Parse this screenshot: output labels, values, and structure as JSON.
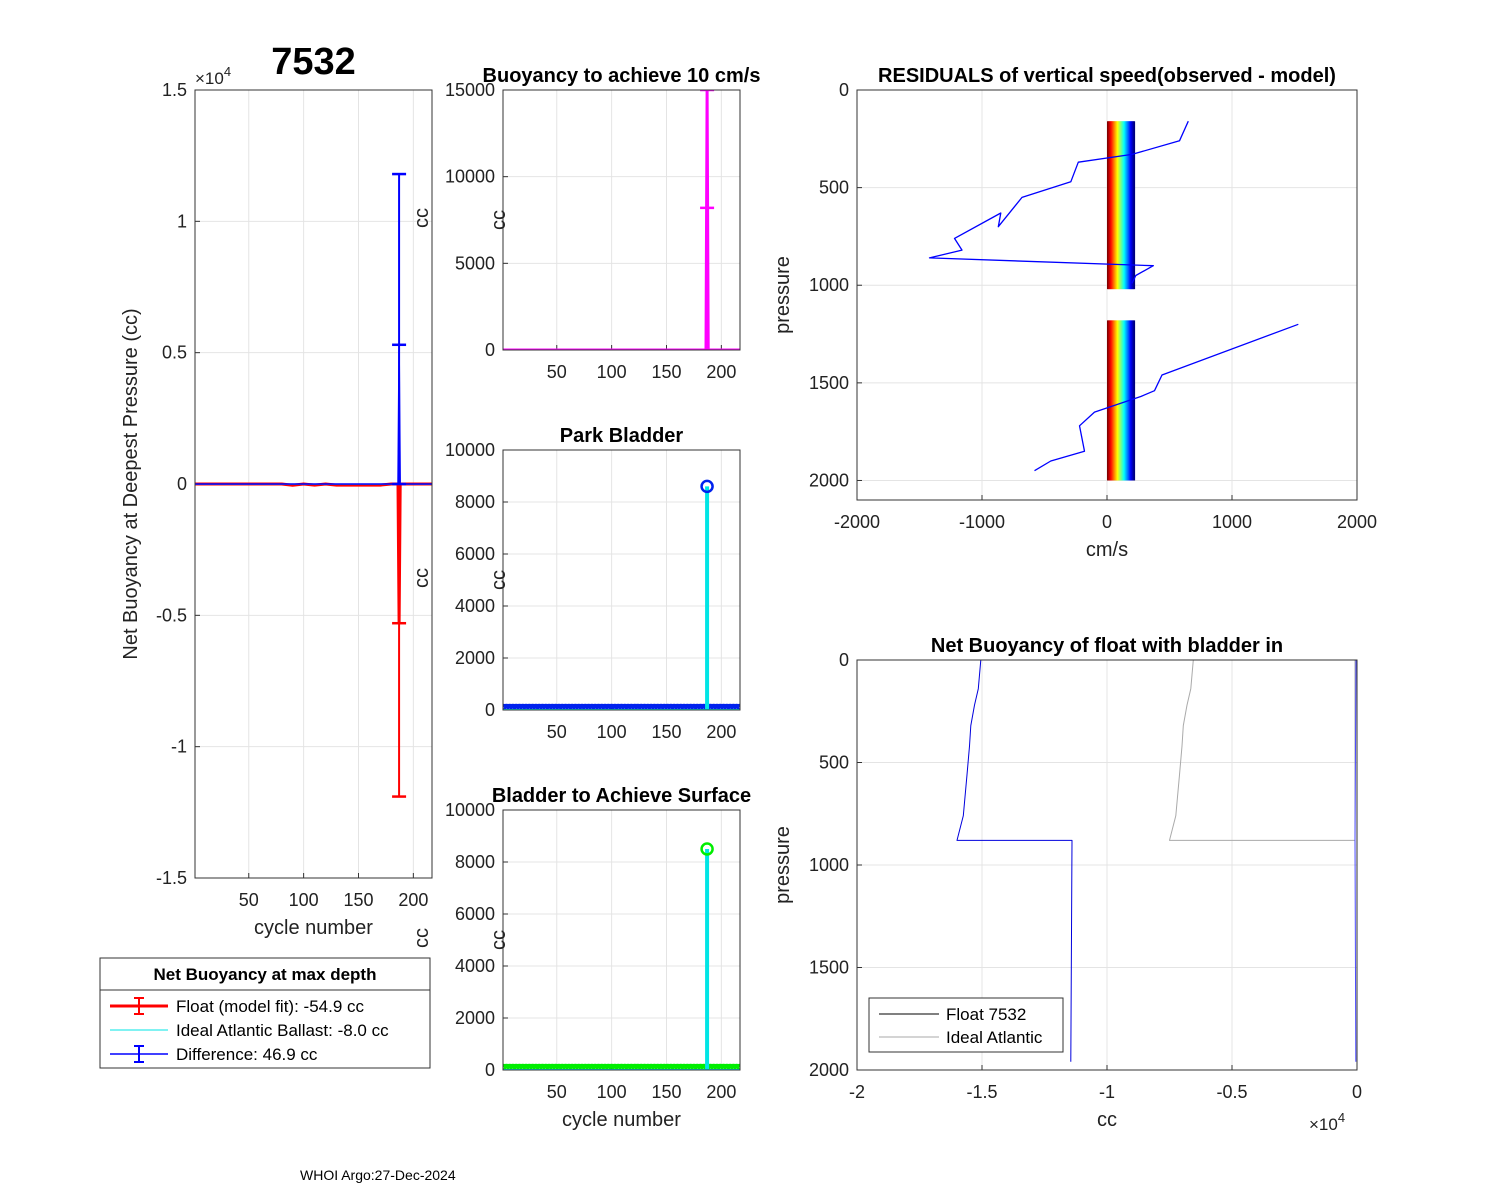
{
  "figure": {
    "float_id": "7532",
    "footer": "WHOI Argo:27-Dec-2024"
  },
  "chart_data": [
    {
      "id": "net_buoyancy",
      "type": "line",
      "title": "7532",
      "xlabel": "cycle number",
      "ylabel": "Net Buoyancy at Deepest Pressure (cc)",
      "xlim": [
        1,
        217
      ],
      "ylim": [
        -15000,
        15000
      ],
      "x_ticks": [
        50,
        100,
        150,
        200
      ],
      "x_tick_labels": [
        "50",
        "100",
        "150",
        "200"
      ],
      "y_ticks": [
        -15000,
        -10000,
        -5000,
        0,
        5000,
        10000,
        15000
      ],
      "y_tick_labels": [
        "-1.5",
        "-1",
        "-0.5",
        "0",
        "0.5",
        "1",
        "1.5"
      ],
      "y_exponent": "×10",
      "y_exponent_power": "4",
      "grid": true,
      "series": [
        {
          "name": "Float (model fit)",
          "color": "#ff0000",
          "linewidth": 3,
          "points": [
            [
              1,
              0
            ],
            [
              80,
              0
            ],
            [
              90,
              -50
            ],
            [
              100,
              0
            ],
            [
              110,
              -40
            ],
            [
              120,
              0
            ],
            [
              130,
              -40
            ],
            [
              170,
              -40
            ],
            [
              180,
              0
            ],
            [
              186,
              0
            ],
            [
              187,
              -5300
            ],
            [
              188,
              0
            ],
            [
              217,
              0
            ]
          ]
        },
        {
          "name": "Ideal Atlantic Ballast",
          "color": "#00e5e5",
          "linewidth": 1,
          "points": [
            [
              1,
              -8
            ],
            [
              217,
              -8
            ]
          ]
        },
        {
          "name": "Difference",
          "color": "#0000ff",
          "linewidth": 1.5,
          "points": [
            [
              1,
              0
            ],
            [
              186,
              0
            ],
            [
              187,
              5300
            ],
            [
              188,
              0
            ],
            [
              217,
              0
            ]
          ]
        }
      ],
      "errorbars": [
        {
          "series": "Float (model fit)",
          "x": 187,
          "y": -5300,
          "low": -11900,
          "high": 0,
          "color": "#ff0000"
        },
        {
          "series": "Difference",
          "x": 187,
          "y": 5300,
          "low": 0,
          "high": 11800,
          "color": "#0000ff"
        }
      ],
      "legend": {
        "title": "Net Buoyancy at max depth",
        "location": "below-axes",
        "entries": [
          "Float (model fit): -54.9 cc",
          "Ideal Atlantic Ballast:  -8.0 cc",
          "Difference:  46.9 cc"
        ]
      }
    },
    {
      "id": "buoyancy_10cms",
      "type": "line",
      "title": "Buoyancy to achieve 10 cm/s",
      "xlabel": "",
      "ylabel": "cc",
      "xlim": [
        1,
        217
      ],
      "ylim": [
        0,
        15000
      ],
      "x_ticks": [
        50,
        100,
        150,
        200
      ],
      "x_tick_labels": [
        "50",
        "100",
        "150",
        "200"
      ],
      "y_ticks": [
        0,
        5000,
        10000,
        15000
      ],
      "y_tick_labels": [
        "0",
        "5000",
        "10000",
        "15000"
      ],
      "grid": true,
      "series": [
        {
          "name": "buoyancy",
          "color": "#ff00ff",
          "linewidth": 3,
          "points": [
            [
              1,
              0
            ],
            [
              186,
              0
            ],
            [
              187,
              15000
            ],
            [
              188,
              0
            ],
            [
              217,
              0
            ]
          ]
        }
      ],
      "errorbars": [
        {
          "series": "buoyancy",
          "x": 187,
          "y": 8200,
          "low": 0,
          "high": 15000,
          "color": "#ff00ff"
        }
      ]
    },
    {
      "id": "park_bladder",
      "type": "scatter",
      "title": "Park Bladder",
      "xlabel": "",
      "ylabel": "cc",
      "xlim": [
        1,
        217
      ],
      "ylim": [
        0,
        10000
      ],
      "x_ticks": [
        50,
        100,
        150,
        200
      ],
      "x_tick_labels": [
        "50",
        "100",
        "150",
        "200"
      ],
      "y_ticks": [
        0,
        2000,
        4000,
        6000,
        8000,
        10000
      ],
      "y_tick_labels": [
        "0",
        "2000",
        "4000",
        "6000",
        "8000",
        "10000"
      ],
      "grid": true,
      "series": [
        {
          "name": "park bladder",
          "color": "#0022ee",
          "marker_color": "#0022ee",
          "baseline": 0,
          "x_range": [
            1,
            217
          ],
          "spike": {
            "x": 187,
            "y": 8600,
            "color": "#00e5e5"
          }
        }
      ]
    },
    {
      "id": "bladder_surface",
      "type": "scatter",
      "title": "Bladder to Achieve Surface",
      "xlabel": "cycle number",
      "ylabel": "cc",
      "xlim": [
        1,
        217
      ],
      "ylim": [
        0,
        10000
      ],
      "x_ticks": [
        50,
        100,
        150,
        200
      ],
      "x_tick_labels": [
        "50",
        "100",
        "150",
        "200"
      ],
      "y_ticks": [
        0,
        2000,
        4000,
        6000,
        8000,
        10000
      ],
      "y_tick_labels": [
        "0",
        "2000",
        "4000",
        "6000",
        "8000",
        "10000"
      ],
      "grid": true,
      "series": [
        {
          "name": "surface bladder",
          "color": "#00ee00",
          "marker_color": "#00ee00",
          "baseline": 0,
          "x_range": [
            1,
            217
          ],
          "spike": {
            "x": 187,
            "y": 8500,
            "color": "#00e5e5"
          }
        }
      ]
    },
    {
      "id": "residuals",
      "type": "line",
      "title": "RESIDUALS of vertical speed(observed - model)",
      "xlabel": "cm/s",
      "ylabel": "pressure",
      "xlim": [
        -2000,
        2000
      ],
      "ylim": [
        0,
        2100
      ],
      "y_reversed": true,
      "x_ticks": [
        -2000,
        -1000,
        0,
        1000,
        2000
      ],
      "x_tick_labels": [
        "-2000",
        "-1000",
        "0",
        "1000",
        "2000"
      ],
      "y_ticks": [
        0,
        500,
        1000,
        1500,
        2000
      ],
      "y_tick_labels": [
        "0",
        "500",
        "1000",
        "1500",
        "2000"
      ],
      "grid": true,
      "bands": [
        {
          "x_range": [
            0,
            220
          ],
          "p_range": [
            160,
            1020
          ],
          "colormap": "jet"
        },
        {
          "x_range": [
            0,
            220
          ],
          "p_range": [
            1180,
            2000
          ],
          "colormap": "jet"
        }
      ],
      "series": [
        {
          "name": "upper residual",
          "color": "#0000ff",
          "linewidth": 1.3,
          "points": [
            [
              650,
              160
            ],
            [
              580,
              260
            ],
            [
              200,
              330
            ],
            [
              -230,
              370
            ],
            [
              -290,
              470
            ],
            [
              -680,
              550
            ],
            [
              -870,
              700
            ],
            [
              -850,
              630
            ],
            [
              -1220,
              760
            ],
            [
              -1160,
              820
            ],
            [
              -1420,
              860
            ],
            [
              370,
              900
            ],
            [
              230,
              950
            ],
            [
              200,
              990
            ]
          ]
        },
        {
          "name": "lower residual",
          "color": "#0000ff",
          "linewidth": 1.3,
          "points": [
            [
              1530,
              1200
            ],
            [
              440,
              1460
            ],
            [
              380,
              1540
            ],
            [
              270,
              1570
            ],
            [
              -100,
              1650
            ],
            [
              -220,
              1720
            ],
            [
              -180,
              1850
            ],
            [
              -450,
              1900
            ],
            [
              -580,
              1950
            ]
          ]
        }
      ]
    },
    {
      "id": "net_buoyancy_bladder",
      "type": "line",
      "title": "Net Buoyancy of float with bladder in",
      "xlabel": "cc",
      "ylabel": "pressure",
      "xlim": [
        -20000,
        0
      ],
      "ylim": [
        0,
        2000
      ],
      "y_reversed": true,
      "x_ticks": [
        -20000,
        -15000,
        -10000,
        -5000,
        0
      ],
      "x_tick_labels": [
        "-2",
        "-1.5",
        "-1",
        "-0.5",
        "0"
      ],
      "x_exponent": "×10",
      "x_exponent_power": "4",
      "y_ticks": [
        0,
        500,
        1000,
        1500,
        2000
      ],
      "y_tick_labels": [
        "0",
        "500",
        "1000",
        "1500",
        "2000"
      ],
      "grid": true,
      "series": [
        {
          "name": "Float 7532",
          "color": "#0000dd",
          "linewidth": 1,
          "points": [
            [
              -15050,
              0
            ],
            [
              -15150,
              140
            ],
            [
              -15300,
              220
            ],
            [
              -15450,
              320
            ],
            [
              -15500,
              420
            ],
            [
              -15600,
              560
            ],
            [
              -15750,
              760
            ],
            [
              -16000,
              880
            ],
            [
              -11400,
              880
            ],
            [
              -11450,
              1960
            ]
          ]
        },
        {
          "name": "Ideal Atlantic",
          "color": "#aaaaaa",
          "linewidth": 1,
          "points": [
            [
              -6550,
              0
            ],
            [
              -6650,
              140
            ],
            [
              -6800,
              220
            ],
            [
              -6950,
              320
            ],
            [
              -7000,
              420
            ],
            [
              -7100,
              560
            ],
            [
              -7250,
              760
            ],
            [
              -7500,
              880
            ],
            [
              -80,
              880
            ],
            [
              -80,
              0
            ]
          ]
        },
        {
          "name": "deep tail",
          "color": "#4b4bff",
          "linewidth": 1,
          "points": [
            [
              -40,
              0
            ],
            [
              -80,
              880
            ],
            [
              -60,
              1550
            ],
            [
              -50,
              1960
            ]
          ]
        }
      ],
      "legend": {
        "location": "bottom-left",
        "entries": [
          "Float 7532",
          "Ideal Atlantic"
        ],
        "colors": [
          "#000000",
          "#aaaaaa"
        ]
      }
    }
  ]
}
